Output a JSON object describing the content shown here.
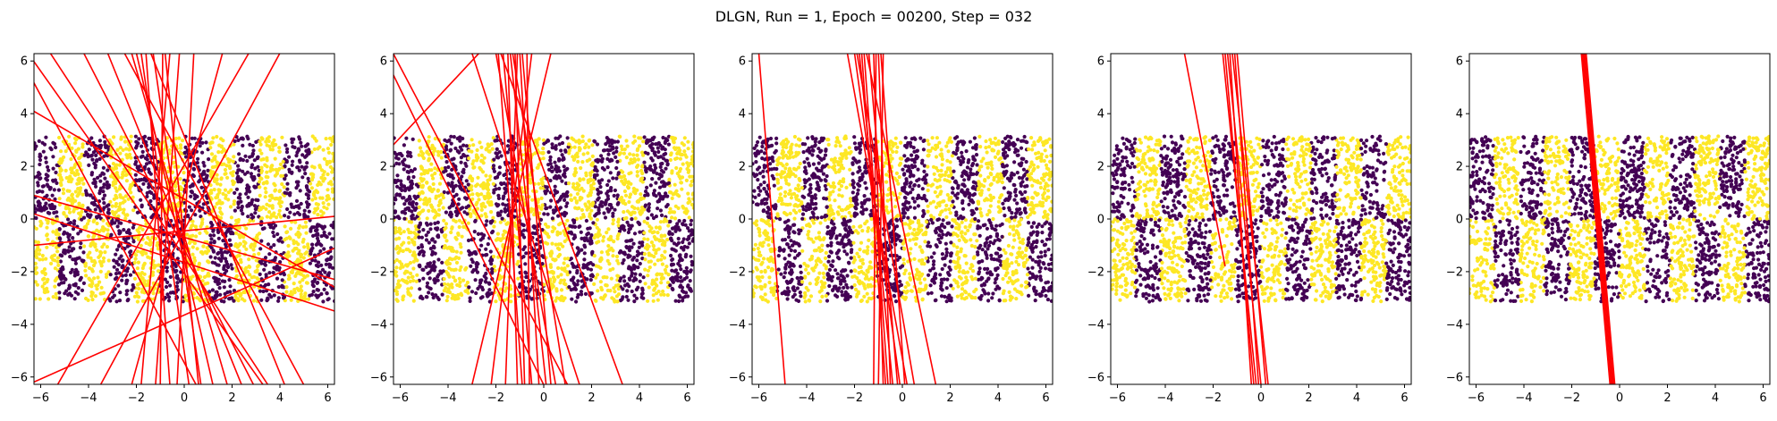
{
  "figure": {
    "title": "DLGN, Run = 1, Epoch = 00200, Step = 032"
  },
  "chart_data": [
    {
      "type": "scatter",
      "panel": 1,
      "xlim": [
        -6.28,
        6.28
      ],
      "ylim": [
        -6.28,
        6.28
      ],
      "xticks": [
        -6,
        -4,
        -2,
        0,
        2,
        4,
        6
      ],
      "yticks": [
        -6,
        -4,
        -2,
        0,
        2,
        4,
        6
      ],
      "grid": false,
      "series": [
        {
          "type": "scatter",
          "color": "#440154",
          "values": "checkerboard class A points (x in [-6.28,6.28], y in [-3.14,3.14])"
        },
        {
          "type": "scatter",
          "color": "#fde725",
          "values": "checkerboard class B points"
        },
        {
          "type": "line",
          "color": "#ff0000",
          "lines": [
            [
              -6.3,
              0.2,
              6.3,
              -3.5
            ],
            [
              -6.3,
              0.9,
              6.3,
              -2.3
            ],
            [
              -6.3,
              4.1,
              6.3,
              -2.6
            ],
            [
              -6.3,
              5.2,
              0.5,
              -6.3
            ],
            [
              -6.3,
              6.0,
              3.3,
              -6.3
            ],
            [
              -6.3,
              -6.2,
              6.3,
              -1.1
            ],
            [
              -6.3,
              -1.0,
              6.3,
              0.1
            ],
            [
              -5.3,
              -6.3,
              2.7,
              6.3
            ],
            [
              -3.5,
              -6.3,
              4.0,
              6.3
            ],
            [
              -2.2,
              -6.3,
              1.6,
              6.3
            ],
            [
              -1.8,
              -6.3,
              -0.6,
              6.3
            ],
            [
              -1.2,
              -6.3,
              -0.2,
              6.3
            ],
            [
              -0.6,
              -6.3,
              -1.6,
              6.3
            ],
            [
              0.2,
              -6.3,
              -1.8,
              6.3
            ],
            [
              0.7,
              -6.3,
              -1.3,
              6.3
            ],
            [
              1.2,
              -6.3,
              -2.0,
              6.3
            ],
            [
              1.8,
              -6.3,
              -2.2,
              6.3
            ],
            [
              2.4,
              -6.3,
              -3.2,
              6.3
            ],
            [
              2.9,
              -6.3,
              -4.2,
              6.3
            ],
            [
              3.5,
              -6.3,
              -5.6,
              6.3
            ],
            [
              4.2,
              -6.3,
              -1.4,
              6.3
            ],
            [
              5.0,
              -6.3,
              -2.5,
              6.3
            ],
            [
              -0.3,
              -6.3,
              0.4,
              6.3
            ],
            [
              -1.0,
              -6.3,
              -0.9,
              6.3
            ],
            [
              0.6,
              -6.3,
              -0.8,
              6.3
            ]
          ]
        }
      ]
    },
    {
      "type": "scatter",
      "panel": 2,
      "xlim": [
        -6.28,
        6.28
      ],
      "ylim": [
        -6.28,
        6.28
      ],
      "xticks": [
        -6,
        -4,
        -2,
        0,
        2,
        4,
        6
      ],
      "yticks": [
        -6,
        -4,
        -2,
        0,
        2,
        4,
        6
      ],
      "grid": false,
      "series": [
        {
          "type": "scatter",
          "color": "#440154",
          "values": "checkerboard class A points"
        },
        {
          "type": "scatter",
          "color": "#fde725",
          "values": "checkerboard class B points"
        },
        {
          "type": "line",
          "color": "#ff0000",
          "lines": [
            [
              -6.3,
              2.8,
              -2.7,
              6.3
            ],
            [
              -6.3,
              6.3,
              1.0,
              -6.3
            ],
            [
              -6.3,
              5.5,
              0.0,
              -6.3
            ],
            [
              -3.0,
              -6.3,
              0.3,
              6.3
            ],
            [
              -2.2,
              -6.3,
              -0.5,
              6.3
            ],
            [
              -1.6,
              -6.3,
              -1.1,
              6.3
            ],
            [
              -1.1,
              -6.3,
              -1.5,
              6.3
            ],
            [
              -0.8,
              -6.3,
              -1.2,
              6.3
            ],
            [
              -0.5,
              -6.3,
              -1.7,
              6.3
            ],
            [
              -0.2,
              -6.3,
              -1.0,
              6.3
            ],
            [
              0.1,
              -6.3,
              -1.4,
              6.3
            ],
            [
              0.5,
              -6.3,
              -2.0,
              6.3
            ],
            [
              0.9,
              -6.3,
              -1.3,
              6.3
            ],
            [
              1.5,
              -6.3,
              -3.0,
              6.3
            ],
            [
              3.3,
              -6.3,
              -1.8,
              6.3
            ],
            [
              -0.6,
              -6.3,
              -0.7,
              6.3
            ],
            [
              -0.9,
              -6.3,
              -1.9,
              6.3
            ],
            [
              0.3,
              -6.3,
              -0.9,
              6.3
            ]
          ]
        }
      ]
    },
    {
      "type": "scatter",
      "panel": 3,
      "xlim": [
        -6.28,
        6.28
      ],
      "ylim": [
        -6.28,
        6.28
      ],
      "xticks": [
        -6,
        -4,
        -2,
        0,
        2,
        4,
        6
      ],
      "yticks": [
        -6,
        -4,
        -2,
        0,
        2,
        4,
        6
      ],
      "grid": false,
      "series": [
        {
          "type": "scatter",
          "color": "#440154",
          "values": "checkerboard class A points"
        },
        {
          "type": "scatter",
          "color": "#fde725",
          "values": "checkerboard class B points"
        },
        {
          "type": "line",
          "color": "#ff0000",
          "lines": [
            [
              -6.0,
              6.3,
              -4.9,
              -6.3
            ],
            [
              -2.3,
              6.3,
              0.2,
              -6.3
            ],
            [
              -2.0,
              6.3,
              -0.1,
              -6.3
            ],
            [
              -1.8,
              6.3,
              -0.4,
              -6.3
            ],
            [
              -1.6,
              6.3,
              -0.6,
              -6.3
            ],
            [
              -1.4,
              6.3,
              -0.2,
              -6.3
            ],
            [
              -1.2,
              6.3,
              -0.8,
              -6.3
            ],
            [
              -1.0,
              6.3,
              -0.5,
              -6.3
            ],
            [
              -0.8,
              6.3,
              -1.0,
              -6.3
            ],
            [
              -1.9,
              6.3,
              0.5,
              -6.3
            ],
            [
              -1.5,
              6.3,
              1.4,
              -6.3
            ],
            [
              -1.1,
              6.3,
              -1.2,
              -6.3
            ],
            [
              -0.9,
              6.3,
              0.1,
              -6.3
            ],
            [
              -1.7,
              6.3,
              -0.7,
              -6.3
            ]
          ]
        }
      ]
    },
    {
      "type": "scatter",
      "panel": 4,
      "xlim": [
        -6.28,
        6.28
      ],
      "ylim": [
        -6.28,
        6.28
      ],
      "xticks": [
        -6,
        -4,
        -2,
        0,
        2,
        4,
        6
      ],
      "yticks": [
        -6,
        -4,
        -2,
        0,
        2,
        4,
        6
      ],
      "grid": false,
      "series": [
        {
          "type": "scatter",
          "color": "#440154",
          "values": "checkerboard class A points"
        },
        {
          "type": "scatter",
          "color": "#fde725",
          "values": "checkerboard class B points"
        },
        {
          "type": "line",
          "color": "#ff0000",
          "lines": [
            [
              -3.2,
              6.3,
              -1.5,
              -1.8
            ],
            [
              -1.6,
              6.3,
              -0.2,
              -6.3
            ],
            [
              -1.4,
              6.3,
              0.0,
              -6.3
            ],
            [
              -1.3,
              6.3,
              -0.4,
              -6.3
            ],
            [
              -1.2,
              6.3,
              0.3,
              -6.3
            ],
            [
              -1.1,
              6.3,
              -0.1,
              -6.3
            ],
            [
              -1.5,
              6.3,
              -0.3,
              -6.3
            ],
            [
              -1.0,
              6.3,
              0.2,
              -6.3
            ]
          ]
        }
      ]
    },
    {
      "type": "scatter",
      "panel": 5,
      "xlim": [
        -6.28,
        6.28
      ],
      "ylim": [
        -6.28,
        6.28
      ],
      "xticks": [
        -6,
        -4,
        -2,
        0,
        2,
        4,
        6
      ],
      "yticks": [
        -6,
        -4,
        -2,
        0,
        2,
        4,
        6
      ],
      "grid": false,
      "series": [
        {
          "type": "scatter",
          "color": "#440154",
          "values": "checkerboard class A points"
        },
        {
          "type": "scatter",
          "color": "#fde725",
          "values": "checkerboard class B points"
        },
        {
          "type": "line",
          "color": "#ff0000",
          "lines": [
            [
              -1.5,
              6.3,
              -0.3,
              -6.3
            ],
            [
              -1.45,
              6.3,
              -0.25,
              -6.3
            ],
            [
              -1.55,
              6.3,
              -0.35,
              -6.3
            ],
            [
              -1.4,
              6.3,
              -0.2,
              -6.3
            ],
            [
              -1.6,
              6.3,
              -0.4,
              -6.3
            ]
          ]
        }
      ]
    }
  ],
  "colors": {
    "class_a": "#440154",
    "class_b": "#fde725",
    "boundary": "#ff0000"
  }
}
